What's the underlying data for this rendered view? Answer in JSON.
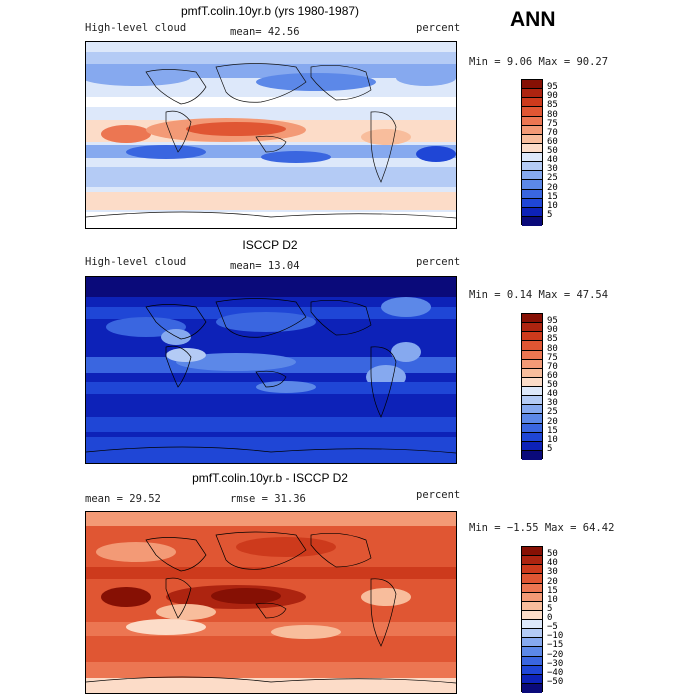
{
  "season": "ANN",
  "colors": {
    "seq": [
      "#0a0a7a",
      "#0d22b8",
      "#1f46d6",
      "#3a66e0",
      "#5c88e8",
      "#86a9ef",
      "#b4cbf5",
      "#dde8fa",
      "#ffffff",
      "#fcdcc8",
      "#f8bd9c",
      "#f39a76",
      "#ec7652",
      "#e05633",
      "#cd3a1c",
      "#ad2410",
      "#861004"
    ],
    "diff": [
      "#0a0a7a",
      "#0d22b8",
      "#1f46d6",
      "#3a66e0",
      "#5c88e8",
      "#86a9ef",
      "#b4cbf5",
      "#dde8fa",
      "#ffffff",
      "#fcdcc8",
      "#f8bd9c",
      "#f39a76",
      "#ec7652",
      "#e05633",
      "#cd3a1c",
      "#ad2410",
      "#861004"
    ]
  },
  "panels": [
    {
      "title": "pmfT.colin.10yr.b (yrs 1980-1987)",
      "left_label": "High-level cloud",
      "stat_label": "mean=  42.56",
      "units": "percent",
      "minmax": "Min =   9.06 Max =  90.27",
      "colorbar_labels": [
        "95",
        "90",
        "85",
        "80",
        "75",
        "70",
        "60",
        "50",
        "40",
        "30",
        "25",
        "20",
        "15",
        "10",
        "5"
      ]
    },
    {
      "title": "ISCCP D2",
      "left_label": "High-level cloud",
      "stat_label": "mean=  13.04",
      "units": "percent",
      "minmax": "Min =   0.14 Max =  47.54",
      "colorbar_labels": [
        "95",
        "90",
        "85",
        "80",
        "75",
        "70",
        "60",
        "50",
        "40",
        "30",
        "25",
        "20",
        "15",
        "10",
        "5"
      ]
    },
    {
      "title": "pmfT.colin.10yr.b - ISCCP D2",
      "left_label": "mean =   29.52",
      "stat_label": "rmse =   31.36",
      "units": "percent",
      "minmax": "Min =  −1.55 Max =  64.42",
      "colorbar_labels": [
        "50",
        "40",
        "30",
        "20",
        "15",
        "10",
        "5",
        "0",
        "−5",
        "−10",
        "−15",
        "−20",
        "−30",
        "−40",
        "−50"
      ]
    }
  ]
}
